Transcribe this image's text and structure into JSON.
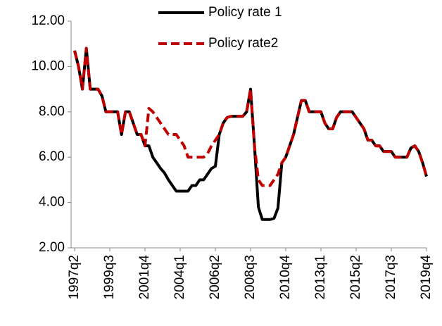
{
  "chart_data": {
    "type": "line",
    "categories": [
      "1997q2",
      null,
      null,
      null,
      null,
      null,
      null,
      null,
      null,
      "1999q3",
      null,
      null,
      null,
      null,
      null,
      null,
      null,
      null,
      "2001q4",
      null,
      null,
      null,
      null,
      null,
      null,
      null,
      null,
      "2004q1",
      null,
      null,
      null,
      null,
      null,
      null,
      null,
      null,
      "2006q2",
      null,
      null,
      null,
      null,
      null,
      null,
      null,
      null,
      "2008q3",
      null,
      null,
      null,
      null,
      null,
      null,
      null,
      null,
      "2010q4",
      null,
      null,
      null,
      null,
      null,
      null,
      null,
      null,
      "2013q1",
      null,
      null,
      null,
      null,
      null,
      null,
      null,
      null,
      "2015q2",
      null,
      null,
      null,
      null,
      null,
      null,
      null,
      null,
      "2017q3",
      null,
      null,
      null,
      null,
      null,
      null,
      null,
      null,
      "2019q4"
    ],
    "series": [
      {
        "name": "Policy rate 1",
        "color": "#000000",
        "dashed": false,
        "values": [
          10.7,
          10.0,
          9.0,
          10.8,
          9.0,
          9.0,
          9.0,
          8.7,
          8.0,
          8.0,
          8.0,
          8.0,
          7.0,
          8.0,
          8.0,
          7.5,
          7.0,
          7.0,
          6.5,
          6.5,
          6.0,
          5.75,
          5.5,
          5.3,
          5.0,
          4.75,
          4.5,
          4.5,
          4.5,
          4.5,
          4.75,
          4.75,
          5.0,
          5.0,
          5.25,
          5.5,
          5.6,
          7.0,
          7.5,
          7.75,
          7.8,
          7.8,
          7.8,
          7.8,
          8.0,
          9.0,
          6.5,
          3.8,
          3.25,
          3.25,
          3.25,
          3.3,
          3.75,
          5.75,
          6.0,
          6.5,
          7.0,
          7.75,
          8.5,
          8.5,
          8.0,
          8.0,
          8.0,
          8.0,
          7.5,
          7.25,
          7.25,
          7.75,
          8.0,
          8.0,
          8.0,
          8.0,
          7.75,
          7.5,
          7.25,
          6.75,
          6.75,
          6.5,
          6.5,
          6.25,
          6.25,
          6.25,
          6.0,
          6.0,
          6.0,
          6.0,
          6.4,
          6.5,
          6.25,
          5.75,
          5.15
        ]
      },
      {
        "name": "Policy rate2",
        "color": "#c00000",
        "dashed": true,
        "values": [
          10.7,
          10.0,
          9.0,
          10.8,
          9.0,
          9.0,
          9.0,
          8.7,
          8.0,
          8.0,
          8.0,
          8.0,
          7.0,
          8.0,
          8.0,
          7.5,
          7.0,
          7.0,
          6.5,
          8.15,
          8.0,
          7.75,
          7.5,
          7.25,
          7.0,
          7.0,
          7.0,
          6.75,
          6.5,
          6.0,
          6.0,
          6.0,
          6.0,
          6.0,
          6.15,
          6.5,
          6.75,
          7.0,
          7.5,
          7.75,
          7.8,
          7.8,
          7.8,
          7.8,
          8.0,
          9.0,
          6.5,
          5.0,
          4.75,
          4.75,
          4.75,
          5.0,
          5.25,
          5.75,
          6.0,
          6.5,
          7.0,
          7.75,
          8.5,
          8.5,
          8.0,
          8.0,
          8.0,
          8.0,
          7.5,
          7.25,
          7.25,
          7.75,
          8.0,
          8.0,
          8.0,
          8.0,
          7.75,
          7.5,
          7.25,
          6.75,
          6.75,
          6.5,
          6.5,
          6.25,
          6.25,
          6.25,
          6.0,
          6.0,
          6.0,
          6.0,
          6.4,
          6.5,
          6.25,
          5.75,
          5.15
        ]
      }
    ],
    "ylim": [
      2,
      12
    ],
    "yticks": [
      {
        "value": 2,
        "label": "2.00"
      },
      {
        "value": 4,
        "label": "4.00"
      },
      {
        "value": 6,
        "label": "6.00"
      },
      {
        "value": 8,
        "label": "8.00"
      },
      {
        "value": 10,
        "label": "10.00"
      },
      {
        "value": 12,
        "label": "12.00"
      }
    ],
    "grid": false,
    "legend": "top"
  }
}
